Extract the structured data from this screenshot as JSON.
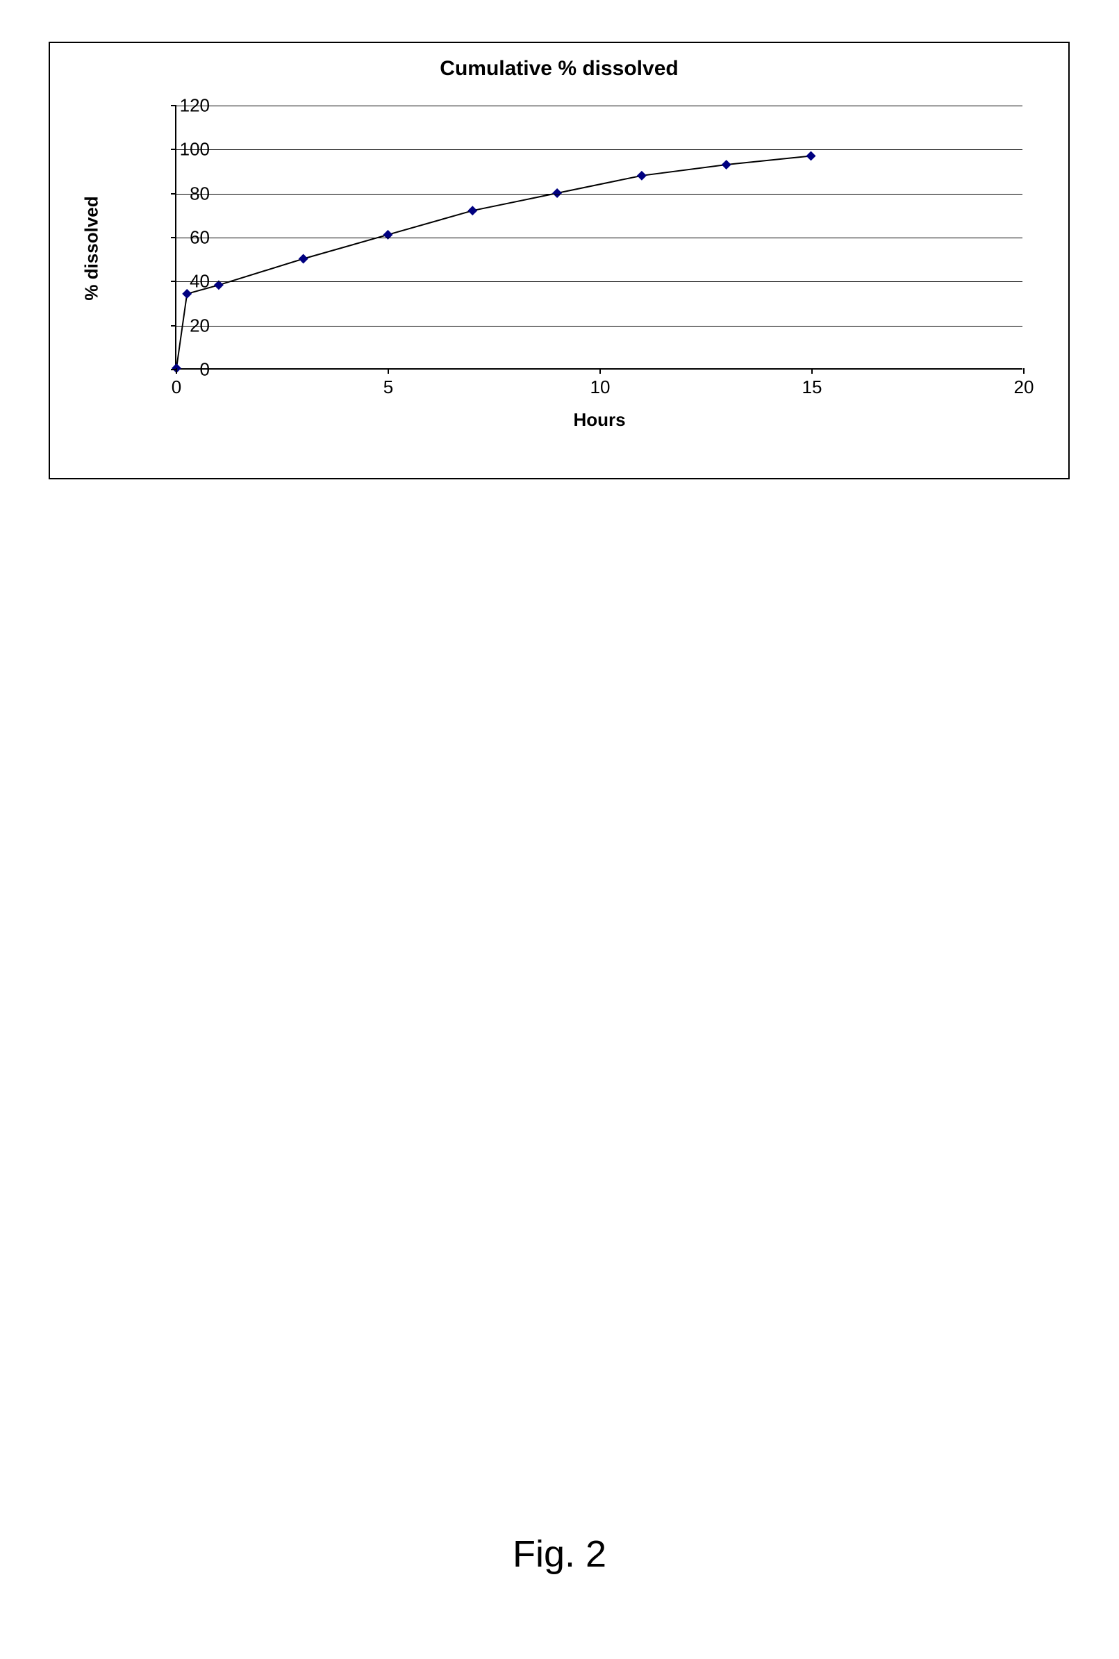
{
  "figure_caption": "Fig. 2",
  "chart": {
    "type": "line",
    "title": "Cumulative % dissolved",
    "title_fontsize": 30,
    "title_fontweight": "bold",
    "xlabel": "Hours",
    "ylabel": "% dissolved",
    "label_fontsize": 26,
    "label_fontweight": "bold",
    "xlim": [
      0,
      20
    ],
    "ylim": [
      0,
      120
    ],
    "xtick_step": 5,
    "ytick_step": 20,
    "xticks": [
      0,
      5,
      10,
      15,
      20
    ],
    "yticks": [
      0,
      20,
      40,
      60,
      80,
      100,
      120
    ],
    "x_values": [
      0,
      0.25,
      1,
      3,
      5,
      7,
      9,
      11,
      13,
      15
    ],
    "y_values": [
      0,
      34,
      38,
      50,
      61,
      72,
      80,
      88,
      93,
      97
    ],
    "line_color": "#000000",
    "marker_color": "#000080",
    "marker_style": "diamond",
    "marker_size": 14,
    "line_width": 2,
    "background_color": "#ffffff",
    "grid_color": "#000000",
    "grid": true,
    "border_color": "#000000",
    "tick_fontsize": 26
  }
}
